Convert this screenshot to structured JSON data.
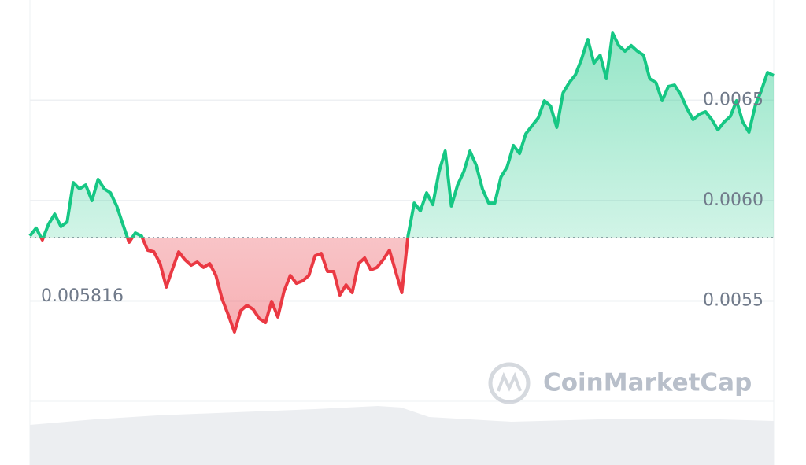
{
  "chart_data": {
    "type": "line",
    "values": [
      0.005824,
      0.005863,
      0.005804,
      0.005882,
      0.005933,
      0.005871,
      0.005894,
      0.00609,
      0.006059,
      0.006078,
      0.006,
      0.006106,
      0.006059,
      0.006039,
      0.005973,
      0.005882,
      0.005792,
      0.005839,
      0.005824,
      0.005753,
      0.005745,
      0.005686,
      0.005569,
      0.005659,
      0.005745,
      0.005706,
      0.005678,
      0.005694,
      0.005667,
      0.005686,
      0.005627,
      0.00551,
      0.005431,
      0.005345,
      0.005451,
      0.005478,
      0.005459,
      0.005412,
      0.005392,
      0.005498,
      0.00542,
      0.005549,
      0.005627,
      0.005588,
      0.0056,
      0.005627,
      0.005725,
      0.005737,
      0.005647,
      0.005647,
      0.005529,
      0.00558,
      0.005541,
      0.005686,
      0.005714,
      0.005655,
      0.005667,
      0.005706,
      0.005753,
      0.005647,
      0.005541,
      0.005824,
      0.005988,
      0.005949,
      0.006039,
      0.00598,
      0.006145,
      0.006247,
      0.005973,
      0.006078,
      0.006145,
      0.006247,
      0.006176,
      0.006059,
      0.005988,
      0.005988,
      0.006118,
      0.006169,
      0.006275,
      0.006235,
      0.006333,
      0.006373,
      0.006412,
      0.006498,
      0.006471,
      0.006365,
      0.006537,
      0.006588,
      0.006627,
      0.006706,
      0.006804,
      0.006686,
      0.006725,
      0.006608,
      0.006835,
      0.006773,
      0.006745,
      0.006773,
      0.006745,
      0.006725,
      0.006608,
      0.006588,
      0.006498,
      0.006569,
      0.006576,
      0.006529,
      0.006459,
      0.006404,
      0.006431,
      0.006443,
      0.006404,
      0.006353,
      0.006392,
      0.00642,
      0.006498,
      0.006392,
      0.006341,
      0.006471,
      0.006549,
      0.006639,
      0.006624
    ],
    "baseline": 0.005816,
    "up_color": "#16c784",
    "down_color": "#ea3943",
    "ylim": [
      0.005,
      0.007
    ],
    "yticks": [
      0.0055,
      {
        "value": 0.006,
        "label": "0.0060"
      },
      0.0065
    ],
    "grid": true,
    "watermark": "CoinMarketCap"
  }
}
